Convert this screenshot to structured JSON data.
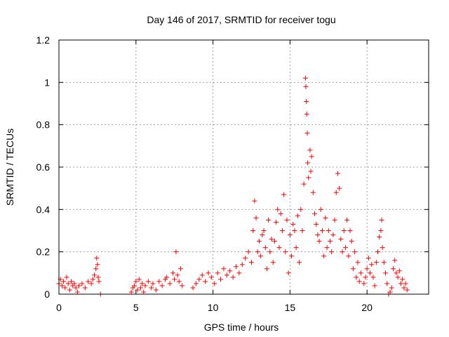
{
  "chart_data": {
    "type": "scatter",
    "title": "Day 146 of 2017, SRMTID for receiver togu",
    "xlabel": "GPS time / hours",
    "ylabel": "SRMTID / TECUs",
    "xlim": [
      0,
      24
    ],
    "ylim": [
      0,
      1.2
    ],
    "x_ticks": [
      0,
      5,
      10,
      15,
      20
    ],
    "x_tick_labels": [
      "0",
      "5",
      "10",
      "15",
      "20"
    ],
    "y_ticks": [
      0,
      0.2,
      0.4,
      0.6,
      0.8,
      1.0,
      1.2
    ],
    "y_tick_labels": [
      "0",
      "0.2",
      "0.4",
      "0.6",
      "0.8",
      "1",
      "1.2"
    ],
    "grid": true,
    "marker": "+",
    "series": [
      {
        "name": "SRMTID",
        "color": "#ff0000",
        "points": [
          [
            0.0,
            0.05
          ],
          [
            0.1,
            0.07
          ],
          [
            0.2,
            0.04
          ],
          [
            0.3,
            0.06
          ],
          [
            0.4,
            0.03
          ],
          [
            0.5,
            0.08
          ],
          [
            0.6,
            0.05
          ],
          [
            0.7,
            0.02
          ],
          [
            0.8,
            0.06
          ],
          [
            0.9,
            0.04
          ],
          [
            1.0,
            0.05
          ],
          [
            1.1,
            0.03
          ],
          [
            1.2,
            0.01
          ],
          [
            1.3,
            0.04
          ],
          [
            1.5,
            0.05
          ],
          [
            1.7,
            0.03
          ],
          [
            1.9,
            0.06
          ],
          [
            2.1,
            0.05
          ],
          [
            2.2,
            0.07
          ],
          [
            2.3,
            0.09
          ],
          [
            2.4,
            0.12
          ],
          [
            2.45,
            0.17
          ],
          [
            2.5,
            0.14
          ],
          [
            2.55,
            0.08
          ],
          [
            2.6,
            0.06
          ],
          [
            2.7,
            0.0
          ],
          [
            4.7,
            0.01
          ],
          [
            4.8,
            0.03
          ],
          [
            4.9,
            0.04
          ],
          [
            5.0,
            0.06
          ],
          [
            5.1,
            0.02
          ],
          [
            5.2,
            0.07
          ],
          [
            5.3,
            0.03
          ],
          [
            5.4,
            0.05
          ],
          [
            5.5,
            0.01
          ],
          [
            5.6,
            0.04
          ],
          [
            5.8,
            0.06
          ],
          [
            6.0,
            0.03
          ],
          [
            6.1,
            0.05
          ],
          [
            6.3,
            0.02
          ],
          [
            6.5,
            0.06
          ],
          [
            6.7,
            0.04
          ],
          [
            6.9,
            0.07
          ],
          [
            7.0,
            0.08
          ],
          [
            7.2,
            0.05
          ],
          [
            7.4,
            0.1
          ],
          [
            7.5,
            0.07
          ],
          [
            7.6,
            0.2
          ],
          [
            7.7,
            0.09
          ],
          [
            7.8,
            0.06
          ],
          [
            7.9,
            0.12
          ],
          [
            8.0,
            0.04
          ],
          [
            8.7,
            0.03
          ],
          [
            8.9,
            0.05
          ],
          [
            9.1,
            0.07
          ],
          [
            9.3,
            0.09
          ],
          [
            9.5,
            0.06
          ],
          [
            9.7,
            0.1
          ],
          [
            9.9,
            0.08
          ],
          [
            10.1,
            0.05
          ],
          [
            10.3,
            0.1
          ],
          [
            10.5,
            0.07
          ],
          [
            10.7,
            0.12
          ],
          [
            10.9,
            0.09
          ],
          [
            11.1,
            0.11
          ],
          [
            11.3,
            0.08
          ],
          [
            11.5,
            0.13
          ],
          [
            11.7,
            0.1
          ],
          [
            11.9,
            0.14
          ],
          [
            12.1,
            0.17
          ],
          [
            12.3,
            0.2
          ],
          [
            12.5,
            0.15
          ],
          [
            12.6,
            0.3
          ],
          [
            12.7,
            0.44
          ],
          [
            12.8,
            0.36
          ],
          [
            12.9,
            0.2
          ],
          [
            13.0,
            0.25
          ],
          [
            13.1,
            0.18
          ],
          [
            13.2,
            0.28
          ],
          [
            13.3,
            0.3
          ],
          [
            13.4,
            0.22
          ],
          [
            13.5,
            0.12
          ],
          [
            13.6,
            0.35
          ],
          [
            13.7,
            0.2
          ],
          [
            13.8,
            0.26
          ],
          [
            13.9,
            0.15
          ],
          [
            14.0,
            0.25
          ],
          [
            14.1,
            0.34
          ],
          [
            14.2,
            0.4
          ],
          [
            14.3,
            0.22
          ],
          [
            14.4,
            0.38
          ],
          [
            14.5,
            0.3
          ],
          [
            14.6,
            0.47
          ],
          [
            14.7,
            0.2
          ],
          [
            14.8,
            0.35
          ],
          [
            14.9,
            0.1
          ],
          [
            15.0,
            0.28
          ],
          [
            15.1,
            0.18
          ],
          [
            15.2,
            0.33
          ],
          [
            15.3,
            0.3
          ],
          [
            15.4,
            0.22
          ],
          [
            15.5,
            0.37
          ],
          [
            15.6,
            0.15
          ],
          [
            15.7,
            0.4
          ],
          [
            15.8,
            0.3
          ],
          [
            15.9,
            0.52
          ],
          [
            16.0,
            1.02
          ],
          [
            16.03,
            0.98
          ],
          [
            16.06,
            0.91
          ],
          [
            16.09,
            0.85
          ],
          [
            16.12,
            0.76
          ],
          [
            16.15,
            0.62
          ],
          [
            16.2,
            0.55
          ],
          [
            16.3,
            0.68
          ],
          [
            16.35,
            0.58
          ],
          [
            16.4,
            0.65
          ],
          [
            16.5,
            0.48
          ],
          [
            16.6,
            0.38
          ],
          [
            16.7,
            0.33
          ],
          [
            16.8,
            0.28
          ],
          [
            16.9,
            0.25
          ],
          [
            17.0,
            0.4
          ],
          [
            17.1,
            0.3
          ],
          [
            17.2,
            0.18
          ],
          [
            17.3,
            0.36
          ],
          [
            17.4,
            0.22
          ],
          [
            17.5,
            0.3
          ],
          [
            17.6,
            0.25
          ],
          [
            17.7,
            0.2
          ],
          [
            17.8,
            0.28
          ],
          [
            17.9,
            0.35
          ],
          [
            18.0,
            0.48
          ],
          [
            18.1,
            0.57
          ],
          [
            18.2,
            0.5
          ],
          [
            18.3,
            0.26
          ],
          [
            18.4,
            0.2
          ],
          [
            18.5,
            0.3
          ],
          [
            18.6,
            0.22
          ],
          [
            18.7,
            0.35
          ],
          [
            18.8,
            0.18
          ],
          [
            18.9,
            0.3
          ],
          [
            19.0,
            0.25
          ],
          [
            19.1,
            0.12
          ],
          [
            19.2,
            0.2
          ],
          [
            19.3,
            0.08
          ],
          [
            19.4,
            0.15
          ],
          [
            19.5,
            0.06
          ],
          [
            19.6,
            0.1
          ],
          [
            19.8,
            0.05
          ],
          [
            19.9,
            0.08
          ],
          [
            20.0,
            0.12
          ],
          [
            20.1,
            0.17
          ],
          [
            20.2,
            0.1
          ],
          [
            20.3,
            0.14
          ],
          [
            20.4,
            0.08
          ],
          [
            20.5,
            0.04
          ],
          [
            20.6,
            0.15
          ],
          [
            20.7,
            0.2
          ],
          [
            20.8,
            0.27
          ],
          [
            20.9,
            0.3
          ],
          [
            20.95,
            0.35
          ],
          [
            21.0,
            0.22
          ],
          [
            21.1,
            0.15
          ],
          [
            21.2,
            0.1
          ],
          [
            21.3,
            0.05
          ],
          [
            21.4,
            0.0
          ],
          [
            21.5,
            0.01
          ],
          [
            21.6,
            0.03
          ],
          [
            21.7,
            0.12
          ],
          [
            21.8,
            0.16
          ],
          [
            21.9,
            0.1
          ],
          [
            22.0,
            0.08
          ],
          [
            22.1,
            0.11
          ],
          [
            22.2,
            0.05
          ],
          [
            22.3,
            0.07
          ],
          [
            22.4,
            0.03
          ],
          [
            22.5,
            0.05
          ],
          [
            22.6,
            0.02
          ]
        ]
      }
    ]
  }
}
